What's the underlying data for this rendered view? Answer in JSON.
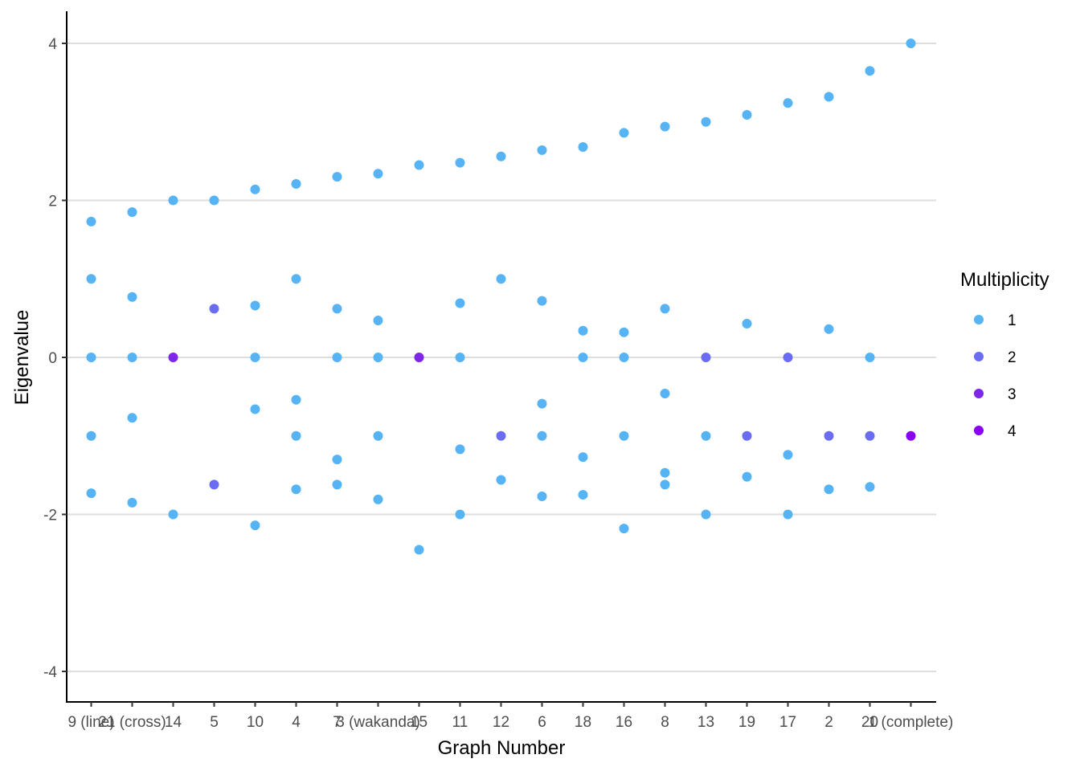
{
  "chart_data": {
    "type": "scatter",
    "xlabel": "Graph Number",
    "ylabel": "Eigenvalue",
    "categories": [
      "9 (line)",
      "21 (cross)",
      "14",
      "5",
      "10",
      "4",
      "7",
      "3 (wakanda)",
      "15",
      "11",
      "12",
      "6",
      "18",
      "16",
      "8",
      "13",
      "19",
      "17",
      "2",
      "20",
      "1 (complete)"
    ],
    "ylim": [
      -4.4,
      4.4
    ],
    "yticks": [
      -4,
      -2,
      0,
      2,
      4
    ],
    "grid": "horizontal-major",
    "legend": {
      "title": "Multiplicity",
      "position": "right",
      "entries": [
        {
          "label": "1",
          "value": 1,
          "color": "#56B4F5"
        },
        {
          "label": "2",
          "value": 2,
          "color": "#6A6CF4"
        },
        {
          "label": "3",
          "value": 3,
          "color": "#7E26E8"
        },
        {
          "label": "4",
          "value": 4,
          "color": "#8A00F5"
        }
      ]
    },
    "points": [
      {
        "x": "9 (line)",
        "y": 1.73,
        "m": 1
      },
      {
        "x": "9 (line)",
        "y": 1.0,
        "m": 1
      },
      {
        "x": "9 (line)",
        "y": 0.0,
        "m": 1
      },
      {
        "x": "9 (line)",
        "y": -1.0,
        "m": 1
      },
      {
        "x": "9 (line)",
        "y": -1.73,
        "m": 1
      },
      {
        "x": "21 (cross)",
        "y": 1.85,
        "m": 1
      },
      {
        "x": "21 (cross)",
        "y": 0.77,
        "m": 1
      },
      {
        "x": "21 (cross)",
        "y": 0.0,
        "m": 1
      },
      {
        "x": "21 (cross)",
        "y": -0.77,
        "m": 1
      },
      {
        "x": "21 (cross)",
        "y": -1.85,
        "m": 1
      },
      {
        "x": "14",
        "y": 2.0,
        "m": 1
      },
      {
        "x": "14",
        "y": 0.0,
        "m": 3
      },
      {
        "x": "14",
        "y": -2.0,
        "m": 1
      },
      {
        "x": "5",
        "y": 2.0,
        "m": 1
      },
      {
        "x": "5",
        "y": 0.62,
        "m": 2
      },
      {
        "x": "5",
        "y": -1.62,
        "m": 2
      },
      {
        "x": "10",
        "y": 2.14,
        "m": 1
      },
      {
        "x": "10",
        "y": 0.66,
        "m": 1
      },
      {
        "x": "10",
        "y": 0.0,
        "m": 1
      },
      {
        "x": "10",
        "y": -0.66,
        "m": 1
      },
      {
        "x": "10",
        "y": -2.14,
        "m": 1
      },
      {
        "x": "4",
        "y": 2.21,
        "m": 1
      },
      {
        "x": "4",
        "y": 1.0,
        "m": 1
      },
      {
        "x": "4",
        "y": -0.54,
        "m": 1
      },
      {
        "x": "4",
        "y": -1.0,
        "m": 1
      },
      {
        "x": "4",
        "y": -1.68,
        "m": 1
      },
      {
        "x": "7",
        "y": 2.3,
        "m": 1
      },
      {
        "x": "7",
        "y": 0.62,
        "m": 1
      },
      {
        "x": "7",
        "y": 0.0,
        "m": 1
      },
      {
        "x": "7",
        "y": -1.3,
        "m": 1
      },
      {
        "x": "7",
        "y": -1.62,
        "m": 1
      },
      {
        "x": "3 (wakanda)",
        "y": 2.34,
        "m": 1
      },
      {
        "x": "3 (wakanda)",
        "y": 0.47,
        "m": 1
      },
      {
        "x": "3 (wakanda)",
        "y": 0.0,
        "m": 1
      },
      {
        "x": "3 (wakanda)",
        "y": -1.0,
        "m": 1
      },
      {
        "x": "3 (wakanda)",
        "y": -1.81,
        "m": 1
      },
      {
        "x": "15",
        "y": 2.45,
        "m": 1
      },
      {
        "x": "15",
        "y": 0.0,
        "m": 3
      },
      {
        "x": "15",
        "y": -2.45,
        "m": 1
      },
      {
        "x": "11",
        "y": 2.48,
        "m": 1
      },
      {
        "x": "11",
        "y": 0.69,
        "m": 1
      },
      {
        "x": "11",
        "y": 0.0,
        "m": 1
      },
      {
        "x": "11",
        "y": -1.17,
        "m": 1
      },
      {
        "x": "11",
        "y": -2.0,
        "m": 1
      },
      {
        "x": "12",
        "y": 2.56,
        "m": 1
      },
      {
        "x": "12",
        "y": 1.0,
        "m": 1
      },
      {
        "x": "12",
        "y": -1.0,
        "m": 2
      },
      {
        "x": "12",
        "y": -1.56,
        "m": 1
      },
      {
        "x": "6",
        "y": 2.64,
        "m": 1
      },
      {
        "x": "6",
        "y": 0.72,
        "m": 1
      },
      {
        "x": "6",
        "y": -0.59,
        "m": 1
      },
      {
        "x": "6",
        "y": -1.0,
        "m": 1
      },
      {
        "x": "6",
        "y": -1.77,
        "m": 1
      },
      {
        "x": "18",
        "y": 2.68,
        "m": 1
      },
      {
        "x": "18",
        "y": 0.34,
        "m": 1
      },
      {
        "x": "18",
        "y": 0.0,
        "m": 1
      },
      {
        "x": "18",
        "y": -1.27,
        "m": 1
      },
      {
        "x": "18",
        "y": -1.75,
        "m": 1
      },
      {
        "x": "16",
        "y": 2.86,
        "m": 1
      },
      {
        "x": "16",
        "y": 0.32,
        "m": 1
      },
      {
        "x": "16",
        "y": 0.0,
        "m": 1
      },
      {
        "x": "16",
        "y": -1.0,
        "m": 1
      },
      {
        "x": "16",
        "y": -2.18,
        "m": 1
      },
      {
        "x": "8",
        "y": 2.94,
        "m": 1
      },
      {
        "x": "8",
        "y": 0.62,
        "m": 1
      },
      {
        "x": "8",
        "y": -0.46,
        "m": 1
      },
      {
        "x": "8",
        "y": -1.47,
        "m": 1
      },
      {
        "x": "8",
        "y": -1.62,
        "m": 1
      },
      {
        "x": "13",
        "y": 3.0,
        "m": 1
      },
      {
        "x": "13",
        "y": 0.0,
        "m": 2
      },
      {
        "x": "13",
        "y": -1.0,
        "m": 1
      },
      {
        "x": "13",
        "y": -2.0,
        "m": 1
      },
      {
        "x": "19",
        "y": 3.09,
        "m": 1
      },
      {
        "x": "19",
        "y": 0.43,
        "m": 1
      },
      {
        "x": "19",
        "y": -1.0,
        "m": 2
      },
      {
        "x": "19",
        "y": -1.52,
        "m": 1
      },
      {
        "x": "17",
        "y": 3.24,
        "m": 1
      },
      {
        "x": "17",
        "y": 0.0,
        "m": 2
      },
      {
        "x": "17",
        "y": -1.24,
        "m": 1
      },
      {
        "x": "17",
        "y": -2.0,
        "m": 1
      },
      {
        "x": "2",
        "y": 3.32,
        "m": 1
      },
      {
        "x": "2",
        "y": 0.36,
        "m": 1
      },
      {
        "x": "2",
        "y": -1.0,
        "m": 2
      },
      {
        "x": "2",
        "y": -1.68,
        "m": 1
      },
      {
        "x": "20",
        "y": 3.65,
        "m": 1
      },
      {
        "x": "20",
        "y": 0.0,
        "m": 1
      },
      {
        "x": "20",
        "y": -1.0,
        "m": 2
      },
      {
        "x": "20",
        "y": -1.65,
        "m": 1
      },
      {
        "x": "1 (complete)",
        "y": 4.0,
        "m": 1
      },
      {
        "x": "1 (complete)",
        "y": -1.0,
        "m": 4
      }
    ]
  }
}
